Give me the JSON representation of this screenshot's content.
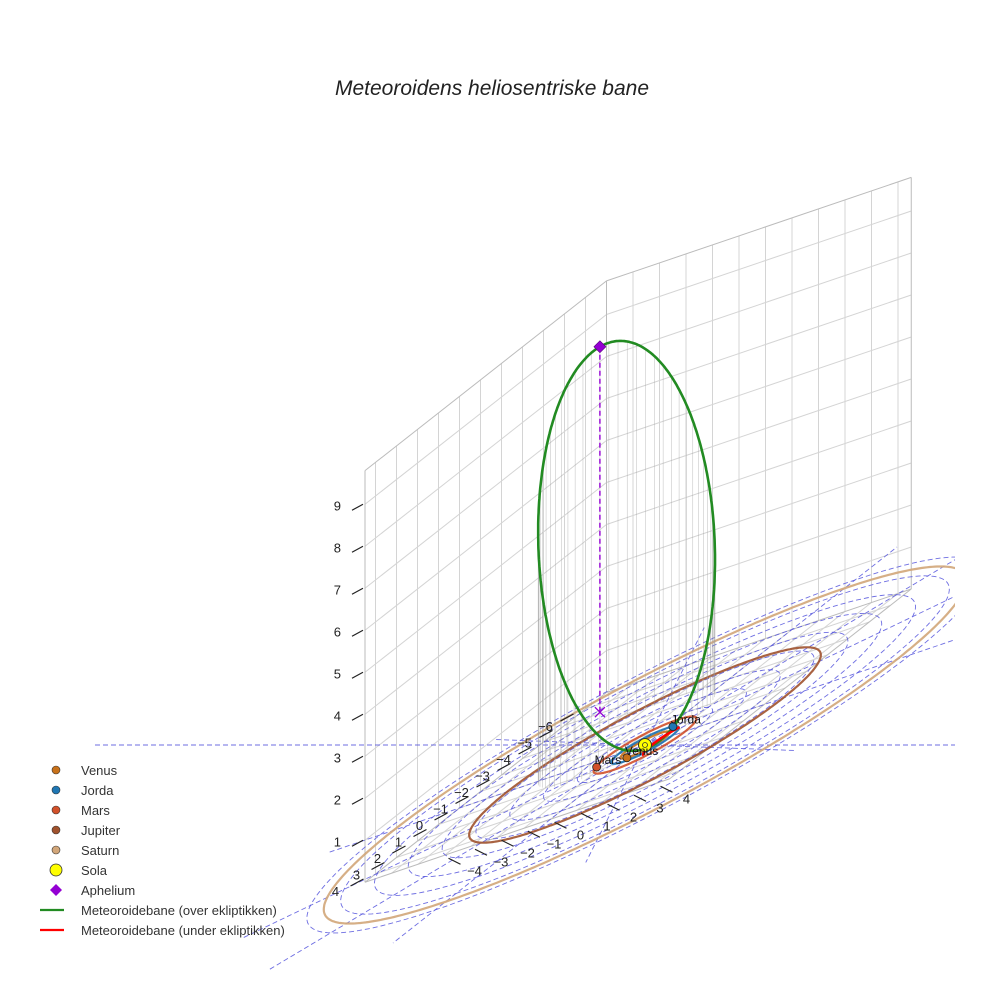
{
  "chart_data": {
    "type": "line3d",
    "title": "Meteoroidens heliosentriske bane",
    "xlabel": "",
    "ylabel": "",
    "zlabel": "",
    "z_ticks": [
      "1",
      "2",
      "3",
      "4",
      "5",
      "6",
      "7",
      "8",
      "9"
    ],
    "x_ticks": [
      "−6",
      "−5",
      "−4",
      "−3",
      "−2",
      "−1",
      "0",
      "1",
      "2",
      "3",
      "4"
    ],
    "y_ticks": [
      "−4",
      "−3",
      "−2",
      "−1",
      "0",
      "1",
      "2",
      "3",
      "4"
    ],
    "grid": true,
    "legend_position": "bottom-left",
    "colors": {
      "venus": "#c8711a",
      "jorda": "#1f77b4",
      "mars": "#d2512a",
      "jupiter": "#a0522d",
      "saturn": "#d2a679",
      "sola": "#ffff00",
      "aphelium": "#9400d3",
      "above": "#228b22",
      "below": "#ff0000",
      "polar": "#5555dd"
    },
    "planets": [
      {
        "name": "Venus",
        "orbit_radius_au": 0.72,
        "x": 0.71,
        "y": -0.12
      },
      {
        "name": "Jorda",
        "orbit_radius_au": 1.0,
        "x": -0.95,
        "y": 0.3
      },
      {
        "name": "Mars",
        "orbit_radius_au": 1.52,
        "x": 0.6,
        "y": -1.35
      },
      {
        "name": "Jupiter",
        "orbit_radius_au": 5.2
      },
      {
        "name": "Saturn",
        "orbit_radius_au": 9.5
      }
    ],
    "sun": {
      "name": "Sola",
      "x": 0,
      "y": 0,
      "z": 0
    },
    "aphelion": {
      "name": "Aphelium",
      "x": -2.9,
      "y": -4.0,
      "z": 9.2
    },
    "orbit": {
      "perihelion": [
        0.3,
        0.55,
        0
      ],
      "aphelion": [
        -2.9,
        -4.0,
        9.2
      ],
      "semi_minor": 2.6,
      "segments": [
        {
          "name": "Meteoroidebane (over ekliptikken)",
          "position": "above"
        },
        {
          "name": "Meteoroidebane (under ekliptikken)",
          "position": "below"
        }
      ]
    },
    "legend": [
      {
        "label": "Venus",
        "marker": "dot",
        "color": "#c8711a"
      },
      {
        "label": "Jorda",
        "marker": "dot",
        "color": "#1f77b4"
      },
      {
        "label": "Mars",
        "marker": "dot",
        "color": "#d2512a"
      },
      {
        "label": "Jupiter",
        "marker": "dot",
        "color": "#a0522d"
      },
      {
        "label": "Saturn",
        "marker": "dot",
        "color": "#d2a679"
      },
      {
        "label": "Sola",
        "marker": "sun",
        "color": "#ffff00"
      },
      {
        "label": "Aphelium",
        "marker": "diamond",
        "color": "#9400d3"
      },
      {
        "label": "Meteoroidebane (over ekliptikken)",
        "marker": "line",
        "color": "#228b22"
      },
      {
        "label": "Meteoroidebane (under ekliptikken)",
        "marker": "line",
        "color": "#ff0000"
      }
    ]
  }
}
